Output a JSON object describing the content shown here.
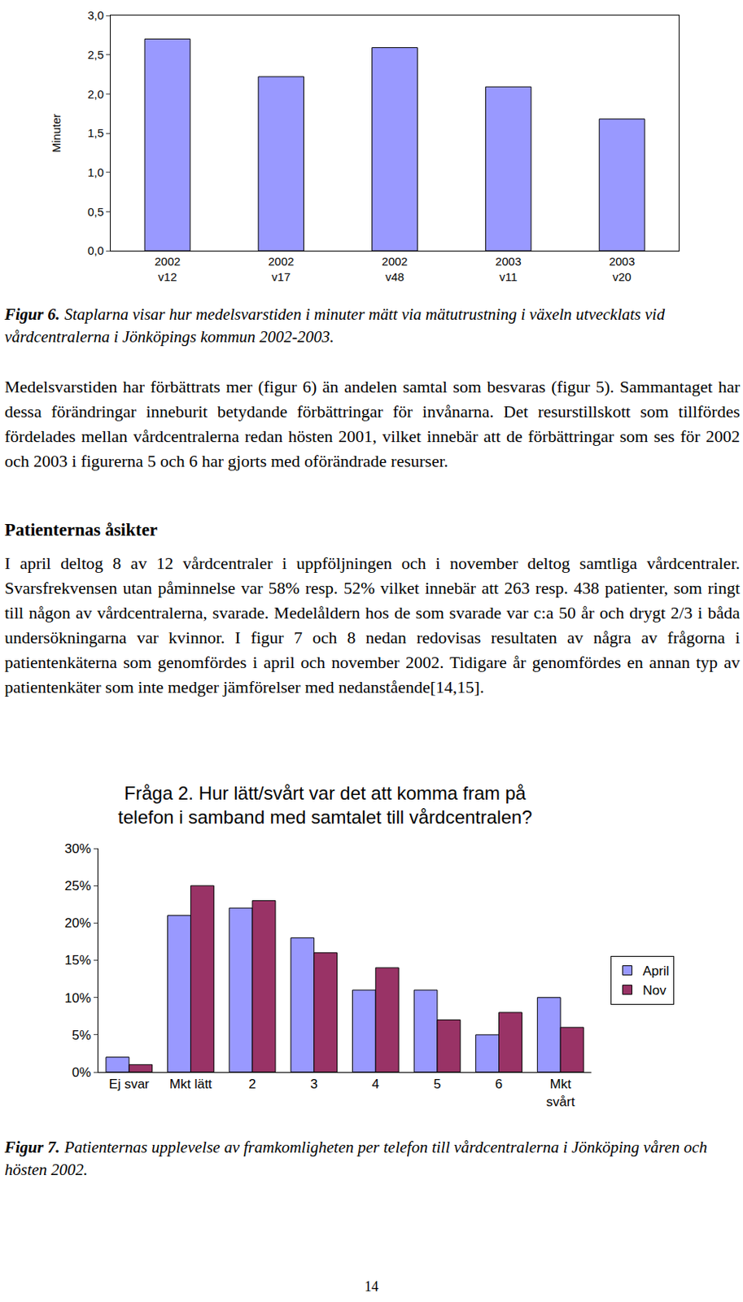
{
  "chart_data": [
    {
      "type": "bar",
      "ylabel": "Minuter",
      "categories": [
        "2002\nv12",
        "2002\nv17",
        "2002\nv48",
        "2003\nv11",
        "2003\nv20"
      ],
      "values": [
        2.7,
        2.22,
        2.59,
        2.09,
        1.68
      ],
      "color": "#9999ff",
      "ylim": [
        0,
        3
      ],
      "yticks": [
        {
          "value": 0,
          "label": "0,0"
        },
        {
          "value": 0.5,
          "label": "0,5"
        },
        {
          "value": 1,
          "label": "1,0"
        },
        {
          "value": 1.5,
          "label": "1,5"
        },
        {
          "value": 2,
          "label": "2,0"
        },
        {
          "value": 2.5,
          "label": "2,5"
        },
        {
          "value": 3,
          "label": "3,0"
        }
      ],
      "grid": false
    },
    {
      "type": "bar",
      "title": "Fråga 2. Hur lätt/svårt var det att komma fram på\ntelefon i samband med samtalet till vårdcentralen?",
      "categories": [
        "Ej svar",
        "Mkt lätt",
        "2",
        "3",
        "4",
        "5",
        "6",
        "Mkt\nsvårt"
      ],
      "series": [
        {
          "name": "April",
          "color": "#9999ff",
          "values": [
            2,
            21,
            22,
            18,
            11,
            11,
            5,
            10
          ]
        },
        {
          "name": "Nov",
          "color": "#993366",
          "values": [
            1,
            25,
            23,
            16,
            14,
            7,
            8,
            6
          ]
        }
      ],
      "ylim": [
        0,
        30
      ],
      "yticks": [
        {
          "value": 0,
          "label": "0%"
        },
        {
          "value": 5,
          "label": "5%"
        },
        {
          "value": 10,
          "label": "10%"
        },
        {
          "value": 15,
          "label": "15%"
        },
        {
          "value": 20,
          "label": "20%"
        },
        {
          "value": 25,
          "label": "25%"
        },
        {
          "value": 30,
          "label": "30%"
        }
      ],
      "legend": "right",
      "grid": false
    }
  ],
  "document": {
    "figure_6_caption": {
      "label": "Figur 6.",
      "text": "Staplarna visar hur medelsvarstiden i minuter mätt via mätutrustning i växeln utvecklats vid vårdcentralerna i Jönköpings kommun 2002-2003."
    },
    "paragraph_1": "Medelsvarstiden har förbättrats mer (figur 6) än andelen samtal som besvaras (figur 5). Sammantaget har dessa förändringar inneburit betydande förbättringar för invånarna. Det resurstillskott som tillfördes fördelades mellan vårdcentralerna redan hösten 2001, vilket innebär att de förbättringar som ses för 2002 och 2003 i figurerna 5 och 6 har gjorts med oförändrade resurser.",
    "heading": "Patienternas åsikter",
    "paragraph_2": "I april deltog 8 av 12 vårdcentraler i uppföljningen och i november deltog samtliga vårdcentraler. Svarsfrekvensen utan påminnelse var 58% resp. 52% vilket innebär att 263 resp. 438 patienter, som ringt till någon av vårdcentralerna, svarade. Medelåldern hos de som svarade var c:a 50 år och drygt 2/3 i båda undersökningarna var kvinnor. I figur 7 och 8 nedan redovisas resultaten av några av frågorna i patientenkäterna som genomfördes i april och november 2002. Tidigare år genomfördes en annan typ av patientenkäter som inte medger jämförelser med nedanstående[14,15].",
    "figure_7_caption": {
      "label": "Figur 7.",
      "text": "Patienternas upplevelse av framkomligheten per telefon till vårdcentralerna i Jönköping våren och hösten 2002."
    },
    "page_number": "14"
  }
}
